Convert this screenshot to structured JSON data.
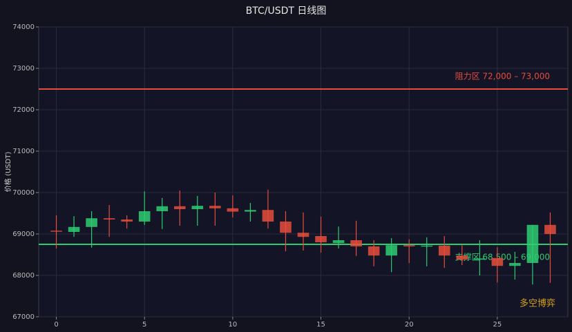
{
  "chart_data": {
    "type": "candlestick",
    "title": "BTC/USDT 日线图",
    "y_label": "价格 (USDT)",
    "x": [
      0,
      1,
      2,
      3,
      4,
      5,
      6,
      7,
      8,
      9,
      10,
      11,
      12,
      13,
      14,
      15,
      16,
      17,
      18,
      19,
      20,
      21,
      22,
      23,
      24,
      25,
      26,
      27,
      28
    ],
    "open": [
      69080,
      69050,
      69170,
      69380,
      69350,
      69300,
      69550,
      69670,
      69600,
      69680,
      69620,
      69540,
      69580,
      69300,
      69030,
      68950,
      68780,
      68850,
      68700,
      68480,
      68730,
      68700,
      68720,
      68480,
      68380,
      68420,
      68230,
      68300,
      69220
    ],
    "high": [
      69450,
      69430,
      69550,
      69700,
      69450,
      70030,
      69870,
      70050,
      69920,
      70000,
      69930,
      69750,
      70070,
      69550,
      69520,
      69420,
      69180,
      69320,
      68850,
      68900,
      68870,
      68920,
      68950,
      68730,
      68850,
      68680,
      68570,
      69220,
      69520
    ],
    "low": [
      68650,
      68930,
      68670,
      68930,
      69130,
      69220,
      69120,
      69200,
      69200,
      69200,
      69400,
      69300,
      69130,
      68580,
      68600,
      68550,
      68650,
      68470,
      68220,
      68080,
      68300,
      68220,
      68180,
      68250,
      68000,
      67830,
      67900,
      67780,
      67820
    ],
    "close": [
      69060,
      69170,
      69380,
      69350,
      69300,
      69550,
      69670,
      69600,
      69680,
      69620,
      69540,
      69580,
      69300,
      69030,
      68930,
      68800,
      68850,
      68700,
      68480,
      68730,
      68700,
      68720,
      68480,
      68380,
      68410,
      68230,
      68300,
      69220,
      69000
    ],
    "up_color": "#2ecc71",
    "down_color": "#e74c3c",
    "xlim": [
      -1,
      29
    ],
    "ylim": [
      67000,
      74000
    ],
    "xticks": [
      0,
      5,
      10,
      15,
      20,
      25
    ],
    "yticks": [
      67000,
      68000,
      69000,
      70000,
      71000,
      72000,
      73000,
      74000
    ],
    "grid": true,
    "hlines": [
      {
        "value": 72500,
        "color": "#e74c3c",
        "label": "阻力区 72,000 – 73,000"
      },
      {
        "value": 68750,
        "color": "#2ecc71",
        "label": "支撑区 68,500 – 69,000"
      }
    ],
    "annotation": {
      "text": "多空博弈",
      "color": "#d4a017"
    }
  }
}
